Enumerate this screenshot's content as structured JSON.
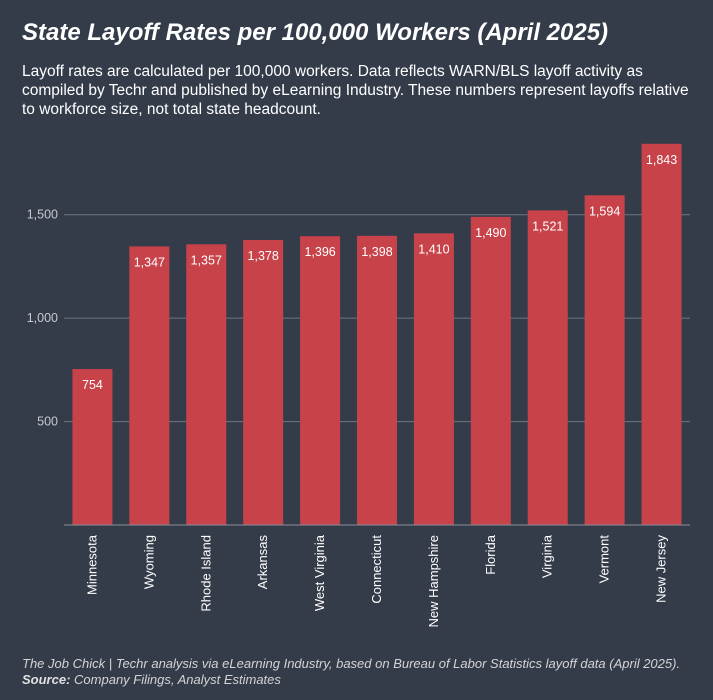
{
  "header": {
    "title": "State Layoff Rates per 100,000 Workers (April 2025)",
    "subtitle": "Layoff rates are calculated per 100,000 workers. Data reflects WARN/BLS layoff activity as compiled by Techr and published by eLearning Industry. These numbers represent layoffs relative to workforce size, not total state headcount."
  },
  "footnote": {
    "text": "The Job Chick | Techr analysis via eLearning Industry, based on Bureau of Labor Statistics layoff data (April 2025).",
    "source_label": "Source:",
    "source_text": "Company Filings, Analyst Estimates"
  },
  "chart_data": {
    "type": "bar",
    "title": "State Layoff Rates per 100,000 Workers (April 2025)",
    "xlabel": "",
    "ylabel": "",
    "categories": [
      "Minnesota",
      "Wyoming",
      "Rhode Island",
      "Arkansas",
      "West Virginia",
      "Connecticut",
      "New Hampshire",
      "Florida",
      "Virginia",
      "Vermont",
      "New Jersey"
    ],
    "values": [
      754,
      1347,
      1357,
      1378,
      1396,
      1398,
      1410,
      1490,
      1521,
      1594,
      1843
    ],
    "value_labels": [
      "754",
      "1,347",
      "1,357",
      "1,378",
      "1,396",
      "1,398",
      "1,410",
      "1,490",
      "1,521",
      "1,594",
      "1,843"
    ],
    "yticks": [
      500,
      1000,
      1500
    ],
    "ytick_labels": [
      "500",
      "1,000",
      "1,500"
    ],
    "ylim": [
      0,
      1900
    ],
    "grid": true,
    "bar_color": "#c8424a",
    "background_color": "#343c4a"
  }
}
